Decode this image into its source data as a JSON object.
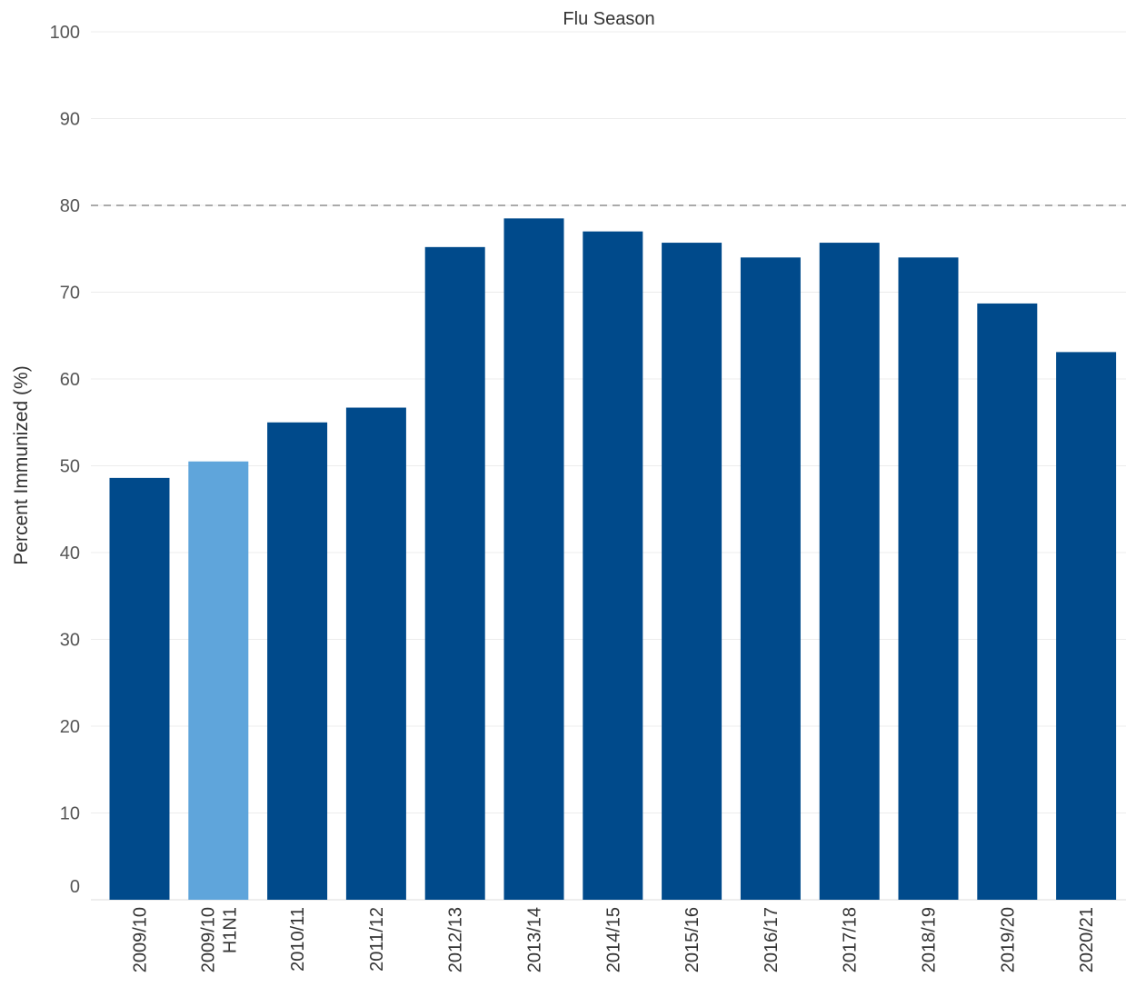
{
  "chart_data": {
    "type": "bar",
    "title": "Flu Season",
    "ylabel": "Percent Immunized (%)",
    "xlabel": "",
    "ylim": [
      0,
      100
    ],
    "yticks": [
      0,
      10,
      20,
      30,
      40,
      50,
      60,
      70,
      80,
      90,
      100
    ],
    "categories": [
      [
        "2009/10"
      ],
      [
        "2009/10",
        "H1N1"
      ],
      [
        "2010/11"
      ],
      [
        "2011/12"
      ],
      [
        "2012/13"
      ],
      [
        "2013/14"
      ],
      [
        "2014/15"
      ],
      [
        "2015/16"
      ],
      [
        "2016/17"
      ],
      [
        "2017/18"
      ],
      [
        "2018/19"
      ],
      [
        "2019/20"
      ],
      [
        "2020/21"
      ]
    ],
    "values": [
      48.6,
      50.5,
      55.0,
      56.7,
      75.2,
      78.5,
      77.0,
      75.7,
      74.0,
      75.7,
      74.0,
      68.7,
      63.1
    ],
    "bar_colors": [
      "#004a8b",
      "#5fa5db",
      "#004a8b",
      "#004a8b",
      "#004a8b",
      "#004a8b",
      "#004a8b",
      "#004a8b",
      "#004a8b",
      "#004a8b",
      "#004a8b",
      "#004a8b",
      "#004a8b"
    ],
    "reference_line": {
      "value": 80,
      "style": "dashed",
      "color": "#aaaaaa"
    },
    "grid": true,
    "legend": "none"
  }
}
